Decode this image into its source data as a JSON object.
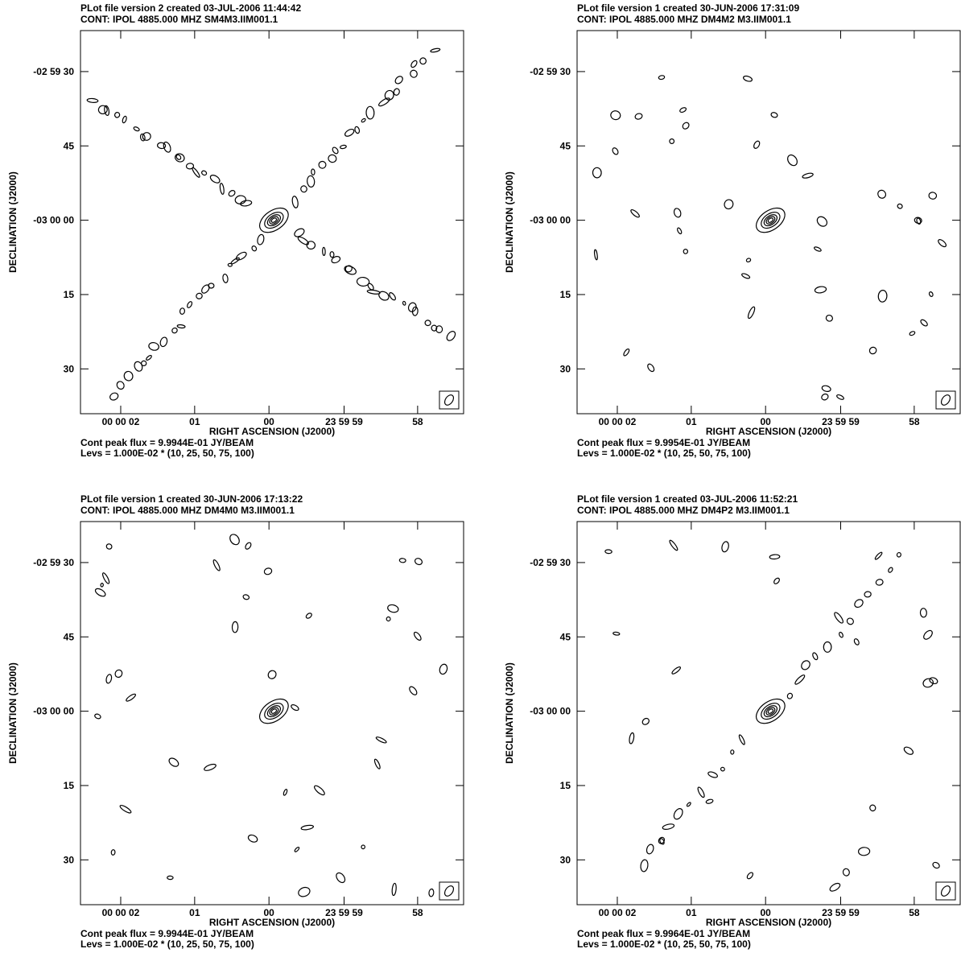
{
  "chart_data": [
    {
      "type": "contour",
      "header_line1": "PLot file version 2  created 03-JUL-2006 11:44:42",
      "header_line2": "CONT:  IPOL  4885.000 MHZ  SM4M3.IIM001.1",
      "xlabel": "RIGHT ASCENSION (J2000)",
      "ylabel": "DECLINATION (J2000)",
      "x_ticks": [
        "00 00 02",
        "01",
        "00",
        "23 59 59",
        "58"
      ],
      "y_ticks": [
        "-02 59 30",
        "45",
        "-03 00 00",
        "15",
        "30"
      ],
      "peak_flux": "Cont peak flux =  9.9944E-01 JY/BEAM",
      "levels": "Levs = 1.000E-02 * (10, 25, 50, 75, 100)",
      "pattern": "x"
    },
    {
      "type": "contour",
      "header_line1": "PLot file version 1  created 30-JUN-2006 17:31:09",
      "header_line2": "CONT:  IPOL  4885.000 MHZ  DM4M2 M3.IIM001.1",
      "xlabel": "RIGHT ASCENSION (J2000)",
      "ylabel": "DECLINATION (J2000)",
      "x_ticks": [
        "00 00 02",
        "01",
        "00",
        "23 59 59",
        "58"
      ],
      "y_ticks": [
        "-02 59 30",
        "45",
        "-03 00 00",
        "15",
        "30"
      ],
      "peak_flux": "Cont peak flux =  9.9954E-01 JY/BEAM",
      "levels": "Levs = 1.000E-02 * (10, 25, 50, 75, 100)",
      "pattern": "scatter"
    },
    {
      "type": "contour",
      "header_line1": "PLot file version 1  created 30-JUN-2006 17:13:22",
      "header_line2": "CONT:  IPOL  4885.000 MHZ  DM4M0 M3.IIM001.1",
      "xlabel": "RIGHT ASCENSION (J2000)",
      "ylabel": "DECLINATION (J2000)",
      "x_ticks": [
        "00 00 02",
        "01",
        "00",
        "23 59 59",
        "58"
      ],
      "y_ticks": [
        "-02 59 30",
        "45",
        "-03 00 00",
        "15",
        "30"
      ],
      "peak_flux": "Cont peak flux =  9.9944E-01 JY/BEAM",
      "levels": "Levs = 1.000E-02 * (10, 25, 50, 75, 100)",
      "pattern": "scatter"
    },
    {
      "type": "contour",
      "header_line1": "PLot file version 1  created 03-JUL-2006 11:52:21",
      "header_line2": "CONT:  IPOL  4885.000 MHZ  DM4P2 M3.IIM001.1",
      "xlabel": "RIGHT ASCENSION (J2000)",
      "ylabel": "DECLINATION (J2000)",
      "x_ticks": [
        "00 00 02",
        "01",
        "00",
        "23 59 59",
        "58"
      ],
      "y_ticks": [
        "-02 59 30",
        "45",
        "-03 00 00",
        "15",
        "30"
      ],
      "peak_flux": "Cont peak flux =  9.9964E-01 JY/BEAM",
      "levels": "Levs = 1.000E-02 * (10, 25, 50, 75, 100)",
      "pattern": "diag"
    }
  ]
}
